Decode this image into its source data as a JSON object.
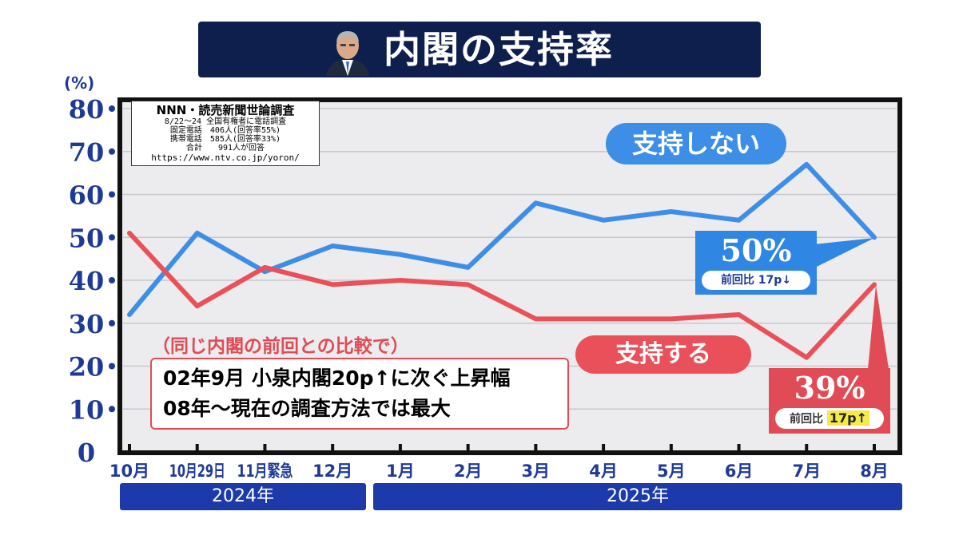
{
  "title": "内閣の支持率",
  "unit_label": "(%)",
  "source": {
    "title": "NNN・読売新聞世論調査",
    "lines": [
      "8/22〜24 全国有権者に電話調査",
      "固定電話　406人(回答率55%)",
      "携帯電話　585人(回答率33%)",
      "合計　　991人が回答"
    ],
    "url": "https://www.ntv.co.jp/yoron/"
  },
  "chart_data": {
    "type": "line",
    "title": "内閣の支持率",
    "ylabel": "(%)",
    "ylim": [
      0,
      80
    ],
    "yticks": [
      0,
      10,
      20,
      30,
      40,
      50,
      60,
      70,
      80
    ],
    "grid": true,
    "categories": [
      "10月",
      "10月29日",
      "11月緊急",
      "12月",
      "1月",
      "2月",
      "3月",
      "4月",
      "5月",
      "6月",
      "7月",
      "8月"
    ],
    "year_groups": [
      {
        "label": "2024年",
        "from": 0,
        "to": 3
      },
      {
        "label": "2025年",
        "from": 4,
        "to": 11
      }
    ],
    "series": [
      {
        "name": "支持しない",
        "color": "#3d8ee6",
        "values": [
          32,
          51,
          42,
          48,
          46,
          43,
          58,
          54,
          56,
          54,
          67,
          50
        ]
      },
      {
        "name": "支持する",
        "color": "#e95059",
        "values": [
          51,
          34,
          43,
          39,
          40,
          39,
          31,
          31,
          31,
          32,
          22,
          39
        ]
      }
    ]
  },
  "callouts": {
    "disapprove": {
      "pct": "50%",
      "change": "前回比 17p↓"
    },
    "approve": {
      "pct": "39%",
      "change_prefix": "前回比 ",
      "change_value": "17p↑"
    }
  },
  "comparison": {
    "heading": "（同じ内閣の前回との比較で）",
    "line1": "02年9月 小泉内閣20p↑に次ぐ上昇幅",
    "line2": "08年〜現在の調査方法では最大"
  },
  "colors": {
    "disapprove": "#3d8ee6",
    "approve": "#e95059",
    "axis_text": "#1e3a96",
    "title_bg": "#0e1f4d",
    "year_bar": "#1c3aa9"
  }
}
